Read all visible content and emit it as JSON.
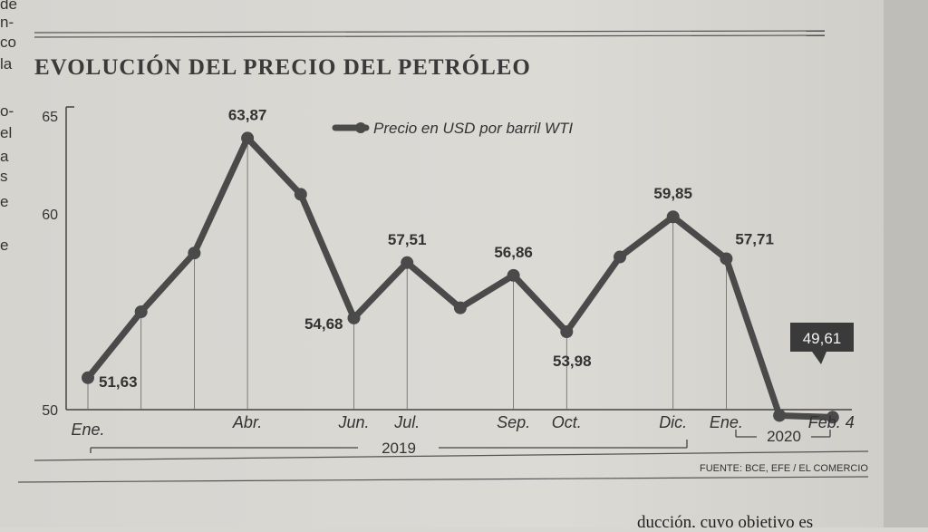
{
  "chart_data": {
    "type": "line",
    "title": "EVOLUCIÓN DEL PRECIO DEL PETRÓLEO",
    "legend": "Precio en USD por barril WTI",
    "legend_position": "top-center",
    "source": "FUENTE: BCE, EFE / EL COMERCIO",
    "ylim": [
      50,
      65
    ],
    "yticks": [
      "50",
      "60",
      "65"
    ],
    "grid": false,
    "series": [
      {
        "values": [
          51.63,
          55.0,
          58.0,
          63.87,
          61.0,
          54.68,
          57.51,
          55.2,
          56.86,
          53.98,
          57.8,
          59.85,
          57.71,
          49.7,
          49.61
        ],
        "labels": [
          "51,63",
          "",
          "",
          "63,87",
          "",
          "54,68",
          "57,51",
          "",
          "56,86",
          "53,98",
          "",
          "59,85",
          "57,71",
          "",
          "49,61"
        ]
      }
    ],
    "month_labels": [
      {
        "text": "Ene.",
        "index": 0
      },
      {
        "text": "Abr.",
        "index": 3
      },
      {
        "text": "Jun.",
        "index": 5
      },
      {
        "text": "Jul.",
        "index": 6
      },
      {
        "text": "Sep.",
        "index": 8
      },
      {
        "text": "Oct.",
        "index": 9
      },
      {
        "text": "Dic.",
        "index": 11
      },
      {
        "text": "Ene.",
        "index": 12
      },
      {
        "text": "Feb. 4",
        "index": 14
      }
    ],
    "year_labels": [
      "2019",
      "2020"
    ],
    "colors": {
      "line": "#4a4a4a",
      "paper": "#d9d7d2",
      "ink": "#333333",
      "callout": "#3a3a3a"
    }
  },
  "margin_fragments": [
    "de",
    "n-",
    "co",
    "la",
    "o-",
    "el",
    "a",
    "s",
    "e",
    "e"
  ],
  "bottom_text": "ducción, cuyo objetivo es"
}
